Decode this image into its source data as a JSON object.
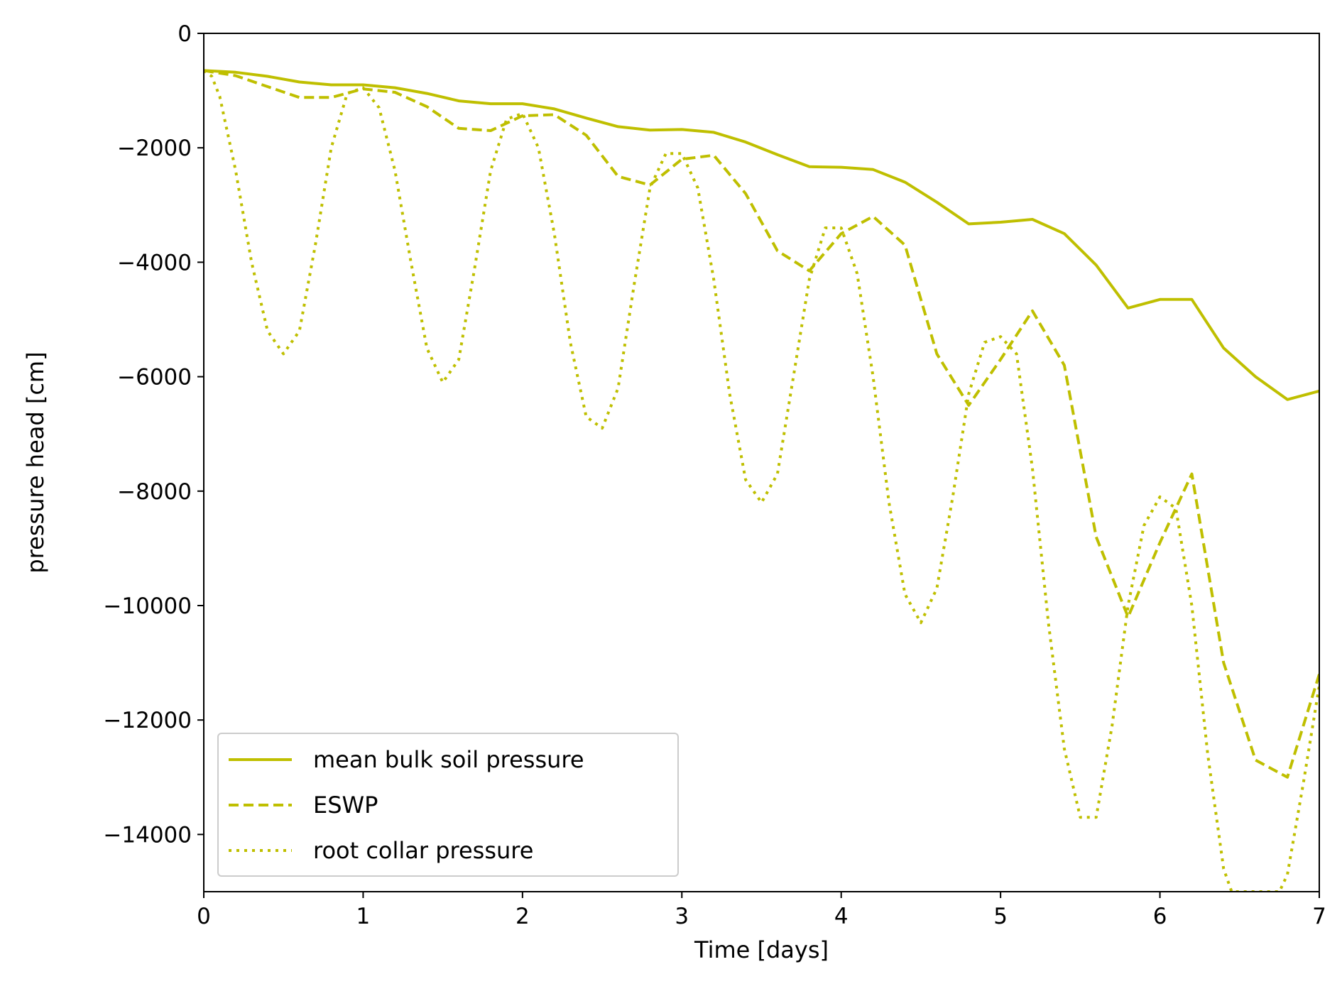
{
  "chart_data": {
    "type": "line",
    "title": "",
    "xlabel": "Time [days]",
    "ylabel": "pressure head [cm]",
    "xlim": [
      0,
      7
    ],
    "ylim": [
      -15000,
      0
    ],
    "xticks": [
      "0",
      "1",
      "2",
      "3",
      "4",
      "5",
      "6",
      "7"
    ],
    "yticks": [
      "0",
      "−2000",
      "−4000",
      "−6000",
      "−8000",
      "−10000",
      "−12000",
      "−14000"
    ],
    "grid": false,
    "legend_position": "lower-left",
    "color": "#bfbf00",
    "series": [
      {
        "name": "mean bulk soil pressure",
        "style": "solid",
        "points": [
          [
            0,
            -650
          ],
          [
            0.2,
            -680
          ],
          [
            0.4,
            -750
          ],
          [
            0.6,
            -850
          ],
          [
            0.8,
            -900
          ],
          [
            1.0,
            -900
          ],
          [
            1.2,
            -950
          ],
          [
            1.4,
            -1050
          ],
          [
            1.6,
            -1180
          ],
          [
            1.8,
            -1230
          ],
          [
            2.0,
            -1230
          ],
          [
            2.2,
            -1320
          ],
          [
            2.4,
            -1480
          ],
          [
            2.6,
            -1630
          ],
          [
            2.8,
            -1690
          ],
          [
            3.0,
            -1680
          ],
          [
            3.2,
            -1730
          ],
          [
            3.4,
            -1900
          ],
          [
            3.6,
            -2120
          ],
          [
            3.8,
            -2330
          ],
          [
            4.0,
            -2340
          ],
          [
            4.2,
            -2380
          ],
          [
            4.4,
            -2600
          ],
          [
            4.6,
            -2950
          ],
          [
            4.8,
            -3330
          ],
          [
            5.0,
            -3300
          ],
          [
            5.2,
            -3250
          ],
          [
            5.4,
            -3500
          ],
          [
            5.6,
            -4050
          ],
          [
            5.8,
            -4800
          ],
          [
            6.0,
            -4650
          ],
          [
            6.2,
            -4650
          ],
          [
            6.4,
            -5500
          ],
          [
            6.6,
            -6000
          ],
          [
            6.8,
            -6400
          ],
          [
            7.0,
            -6250
          ]
        ]
      },
      {
        "name": "ESWP",
        "style": "dashed",
        "points": [
          [
            0,
            -650
          ],
          [
            0.2,
            -740
          ],
          [
            0.4,
            -930
          ],
          [
            0.6,
            -1120
          ],
          [
            0.8,
            -1120
          ],
          [
            1.0,
            -970
          ],
          [
            1.2,
            -1030
          ],
          [
            1.4,
            -1280
          ],
          [
            1.6,
            -1660
          ],
          [
            1.8,
            -1700
          ],
          [
            2.0,
            -1440
          ],
          [
            2.2,
            -1420
          ],
          [
            2.4,
            -1780
          ],
          [
            2.6,
            -2500
          ],
          [
            2.8,
            -2650
          ],
          [
            3.0,
            -2200
          ],
          [
            3.2,
            -2130
          ],
          [
            3.4,
            -2800
          ],
          [
            3.6,
            -3800
          ],
          [
            3.8,
            -4150
          ],
          [
            4.0,
            -3500
          ],
          [
            4.2,
            -3200
          ],
          [
            4.4,
            -3700
          ],
          [
            4.6,
            -5600
          ],
          [
            4.8,
            -6500
          ],
          [
            5.0,
            -5700
          ],
          [
            5.2,
            -4850
          ],
          [
            5.4,
            -5800
          ],
          [
            5.6,
            -8800
          ],
          [
            5.8,
            -10200
          ],
          [
            6.0,
            -8900
          ],
          [
            6.2,
            -7700
          ],
          [
            6.4,
            -11000
          ],
          [
            6.6,
            -12700
          ],
          [
            6.8,
            -13000
          ],
          [
            7.0,
            -11200
          ]
        ]
      },
      {
        "name": "root collar pressure",
        "style": "dotted",
        "points": [
          [
            0,
            -650
          ],
          [
            0.05,
            -750
          ],
          [
            0.1,
            -1100
          ],
          [
            0.2,
            -2400
          ],
          [
            0.3,
            -4000
          ],
          [
            0.4,
            -5200
          ],
          [
            0.5,
            -5600
          ],
          [
            0.6,
            -5200
          ],
          [
            0.7,
            -3700
          ],
          [
            0.8,
            -2000
          ],
          [
            0.9,
            -1050
          ],
          [
            1.0,
            -950
          ],
          [
            1.1,
            -1300
          ],
          [
            1.2,
            -2400
          ],
          [
            1.3,
            -4000
          ],
          [
            1.4,
            -5500
          ],
          [
            1.5,
            -6100
          ],
          [
            1.6,
            -5700
          ],
          [
            1.7,
            -4100
          ],
          [
            1.8,
            -2400
          ],
          [
            1.9,
            -1500
          ],
          [
            2.0,
            -1400
          ],
          [
            2.1,
            -2000
          ],
          [
            2.2,
            -3500
          ],
          [
            2.3,
            -5400
          ],
          [
            2.4,
            -6700
          ],
          [
            2.5,
            -6900
          ],
          [
            2.6,
            -6200
          ],
          [
            2.7,
            -4400
          ],
          [
            2.8,
            -2700
          ],
          [
            2.9,
            -2100
          ],
          [
            3.0,
            -2100
          ],
          [
            3.1,
            -2700
          ],
          [
            3.2,
            -4300
          ],
          [
            3.3,
            -6300
          ],
          [
            3.4,
            -7800
          ],
          [
            3.5,
            -8200
          ],
          [
            3.6,
            -7700
          ],
          [
            3.7,
            -6000
          ],
          [
            3.8,
            -4300
          ],
          [
            3.9,
            -3400
          ],
          [
            4.0,
            -3400
          ],
          [
            4.1,
            -4200
          ],
          [
            4.2,
            -6000
          ],
          [
            4.3,
            -8200
          ],
          [
            4.4,
            -9800
          ],
          [
            4.5,
            -10300
          ],
          [
            4.6,
            -9700
          ],
          [
            4.7,
            -8100
          ],
          [
            4.8,
            -6300
          ],
          [
            4.9,
            -5400
          ],
          [
            5.0,
            -5300
          ],
          [
            5.1,
            -5600
          ],
          [
            5.2,
            -7600
          ],
          [
            5.3,
            -10300
          ],
          [
            5.4,
            -12500
          ],
          [
            5.5,
            -13700
          ],
          [
            5.6,
            -13700
          ],
          [
            5.7,
            -12100
          ],
          [
            5.8,
            -10000
          ],
          [
            5.9,
            -8600
          ],
          [
            6.0,
            -8100
          ],
          [
            6.1,
            -8300
          ],
          [
            6.2,
            -10000
          ],
          [
            6.3,
            -12600
          ],
          [
            6.4,
            -14600
          ],
          [
            6.45,
            -15000
          ],
          [
            6.75,
            -15000
          ],
          [
            6.8,
            -14700
          ],
          [
            6.9,
            -13100
          ],
          [
            7.0,
            -11400
          ]
        ]
      }
    ]
  }
}
